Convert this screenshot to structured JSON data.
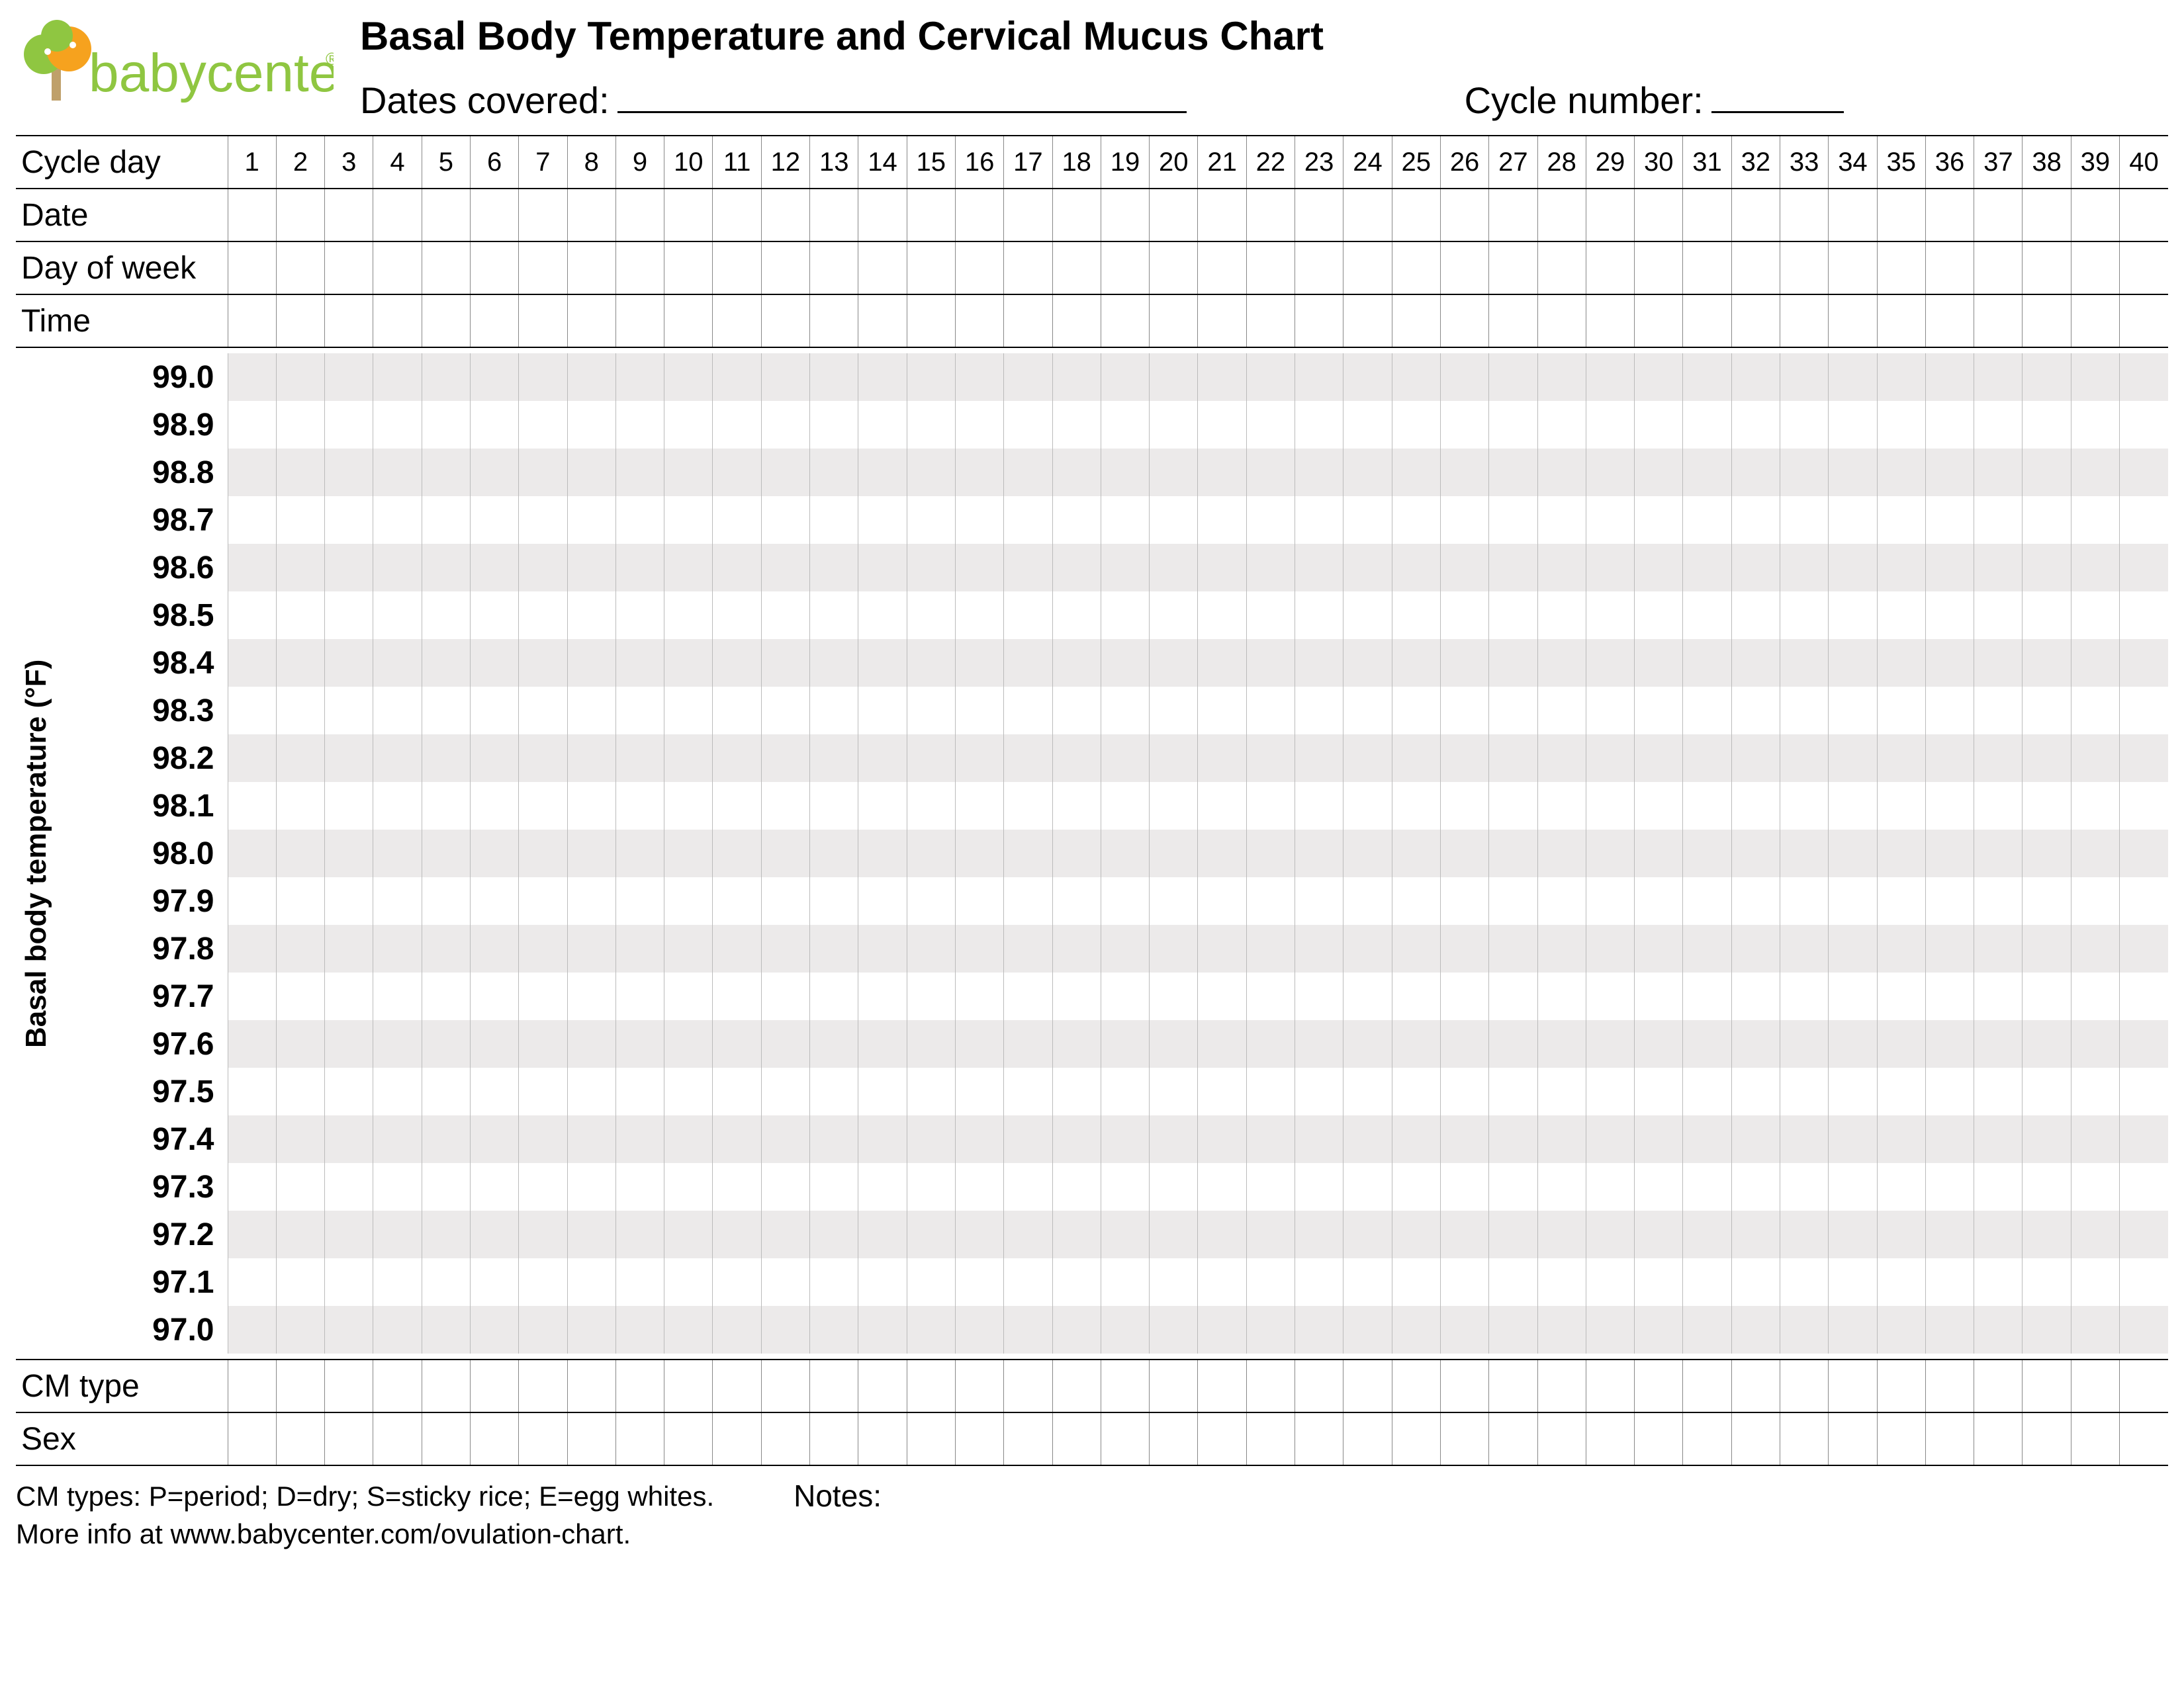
{
  "brand": {
    "name": "babycenter",
    "mark_color_green": "#8fc641",
    "mark_color_orange": "#f6a21e",
    "text_color": "#8fc641"
  },
  "header": {
    "title": "Basal Body Temperature and Cervical Mucus Chart",
    "dates_label": "Dates covered:",
    "cycle_label": "Cycle number:"
  },
  "top_rows": [
    {
      "key": "cycle_day",
      "label": "Cycle day",
      "show_numbers": true
    },
    {
      "key": "date",
      "label": "Date",
      "show_numbers": false
    },
    {
      "key": "dow",
      "label": "Day of week",
      "show_numbers": false
    },
    {
      "key": "time",
      "label": "Time",
      "show_numbers": false
    }
  ],
  "bottom_rows": [
    {
      "key": "cm_type",
      "label": "CM type"
    },
    {
      "key": "sex",
      "label": "Sex"
    }
  ],
  "days": 40,
  "temperature": {
    "axis_label": "Basal body temperature (°F)",
    "values": [
      "99.0",
      "98.9",
      "98.8",
      "98.7",
      "98.6",
      "98.5",
      "98.4",
      "98.3",
      "98.2",
      "98.1",
      "98.0",
      "97.9",
      "97.8",
      "97.7",
      "97.6",
      "97.5",
      "97.4",
      "97.3",
      "97.2",
      "97.1",
      "97.0"
    ],
    "stripe_color": "#eceaea",
    "grid_line_color": "#bbbbbb"
  },
  "footer": {
    "legend": "CM types:  P=period;  D=dry;  S=sticky rice;  E=egg whites.",
    "moreinfo": "More info at www.babycenter.com/ovulation-chart.",
    "notes_label": "Notes:"
  },
  "style": {
    "page_bg": "#ffffff",
    "text_color": "#000000",
    "border_color": "#000000",
    "cell_border_color": "#888888",
    "title_fontsize": 60,
    "sub_fontsize": 56,
    "row_label_fontsize": 48,
    "temp_label_fontsize": 48,
    "footer_fontsize": 42
  }
}
